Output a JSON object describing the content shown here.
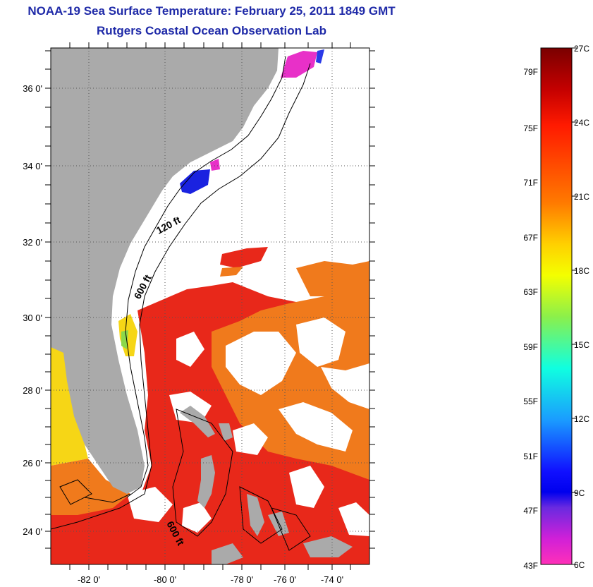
{
  "title": "NOAA-19 Sea Surface Temperature:  February 25, 2011 1849 GMT",
  "subtitle": "Rutgers Coastal Ocean Observation Lab",
  "map": {
    "lon_labels": [
      "-82 0'",
      "-80 0'",
      "-78 0'",
      "-76 0'",
      "-74 0'"
    ],
    "lat_labels": [
      "36 0'",
      "34 0'",
      "32 0'",
      "30 0'",
      "28 0'",
      "26 0'",
      "24 0'"
    ],
    "contour_labels": [
      "120 ft",
      "600 ft",
      "600 ft"
    ],
    "colors": {
      "land": "#aaaaaa",
      "no_data": "#ffffff",
      "warm_water": "#e8281a",
      "mid_water": "#f07a1c",
      "cool_water": "#f6d616",
      "cold_patch": "#1a22e0",
      "magenta_patch": "#e830c8"
    }
  },
  "colorbar": {
    "celsius_labels": [
      "27C",
      "24C",
      "21C",
      "18C",
      "15C",
      "12C",
      "9C",
      "6C"
    ],
    "fahrenheit_labels": [
      "79F",
      "75F",
      "71F",
      "67F",
      "63F",
      "59F",
      "55F",
      "51F",
      "47F",
      "43F"
    ]
  }
}
